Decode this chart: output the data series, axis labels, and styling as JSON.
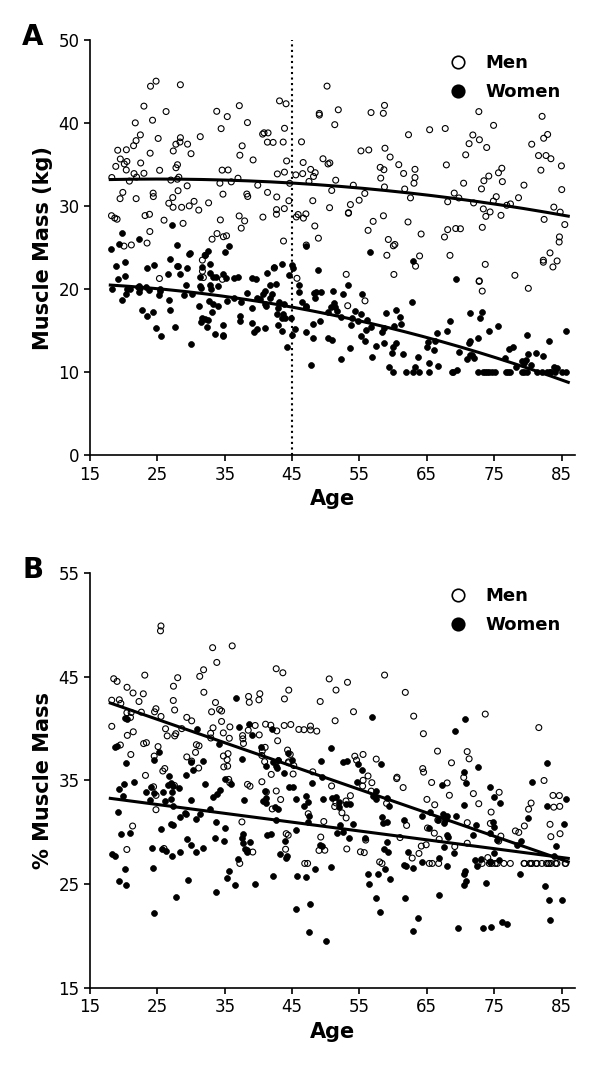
{
  "panel_A": {
    "label": "A",
    "ylabel": "Muscle Mass (kg)",
    "xlabel": "Age",
    "xlim": [
      15,
      87
    ],
    "ylim": [
      0,
      50
    ],
    "xticks": [
      15,
      25,
      35,
      45,
      55,
      65,
      75,
      85
    ],
    "yticks": [
      0,
      10,
      20,
      30,
      40,
      50
    ],
    "vline_x": 45,
    "men_curve_coeffs": [
      32.5,
      0.06,
      -0.0012
    ],
    "women_curve_coeffs": [
      20.8,
      0.015,
      -0.0018
    ],
    "men_scatter_mean": 33.5,
    "men_scatter_std": 5.5,
    "women_scatter_mean": 20.5,
    "women_scatter_std": 3.5,
    "men_scatter_seed": 42,
    "women_scatter_seed": 7,
    "n_men": 250,
    "n_women": 250
  },
  "panel_B": {
    "label": "B",
    "ylabel": "% Muscle Mass",
    "xlabel": "Age",
    "xlim": [
      15,
      87
    ],
    "ylim": [
      15,
      55
    ],
    "xticks": [
      15,
      25,
      35,
      45,
      55,
      65,
      75,
      85
    ],
    "yticks": [
      15,
      25,
      35,
      45,
      55
    ],
    "men_line_coeffs": [
      46.5,
      -0.225
    ],
    "women_line_coeffs": [
      34.8,
      -0.085
    ],
    "men_scatter_seed": 99,
    "women_scatter_seed": 55,
    "n_men": 250,
    "n_women": 250
  },
  "scatter_marker_size": 18,
  "curve_lw": 2.2,
  "label_fontsize": 15,
  "tick_fontsize": 12,
  "legend_fontsize": 13,
  "panel_label_fontsize": 20
}
